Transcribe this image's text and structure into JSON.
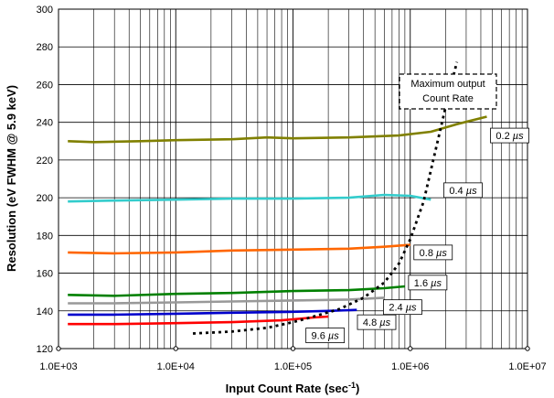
{
  "chart_data": {
    "type": "line",
    "xscale": "log",
    "xlim": [
      1000,
      10000000
    ],
    "ylim": [
      120,
      300
    ],
    "grid": true,
    "xlabel": "Input Count Rate (sec",
    "xlabel_sup": "-1",
    "xlabel_end": ")",
    "ylabel": "Resolution (eV FWHM @ 5.9 keV)",
    "x_tick_labels": [
      "1.0E+03",
      "1.0E+04",
      "1.0E+05",
      "1.0E+06",
      "1.0E+07"
    ],
    "x_tick_values": [
      1000,
      10000,
      100000,
      1000000,
      10000000
    ],
    "y_tick_values": [
      120,
      140,
      160,
      180,
      200,
      220,
      240,
      260,
      280,
      300
    ],
    "y_tick_labels": [
      "120",
      "140",
      "160",
      "180",
      "200",
      "220",
      "240",
      "260",
      "280",
      "300"
    ],
    "series": [
      {
        "name": "0.2 µs",
        "label_prefix": "0.2 ",
        "label_unit": "µs",
        "color": "#808000",
        "x": [
          1200,
          2000,
          5000,
          10000,
          30000,
          60000,
          100000,
          300000,
          800000,
          1500000,
          2500000,
          4500000
        ],
        "y": [
          230,
          229.5,
          230,
          230.5,
          231,
          232,
          231.5,
          232,
          233,
          235,
          239,
          243
        ]
      },
      {
        "name": "0.4 µs",
        "label_prefix": "0.4 ",
        "label_unit": "µs",
        "color": "#33cccc",
        "x": [
          1200,
          3000,
          10000,
          30000,
          100000,
          300000,
          600000,
          1000000,
          1500000
        ],
        "y": [
          198,
          198.5,
          199,
          199.5,
          199.5,
          200,
          201.5,
          201,
          199
        ]
      },
      {
        "name": "0.8 µs",
        "label_prefix": "0.8 ",
        "label_unit": "µs",
        "color": "#ff6600",
        "x": [
          1200,
          3000,
          10000,
          30000,
          100000,
          300000,
          600000,
          1000000
        ],
        "y": [
          171,
          170.5,
          171,
          172,
          172.5,
          173,
          174,
          175
        ]
      },
      {
        "name": "1.6 µs",
        "label_prefix": "1.6 ",
        "label_unit": "µs",
        "color": "#008000",
        "x": [
          1200,
          3000,
          10000,
          30000,
          100000,
          300000,
          600000,
          900000
        ],
        "y": [
          148.5,
          148,
          149,
          149.5,
          150.5,
          151,
          152,
          153
        ]
      },
      {
        "name": "2.4 µs",
        "label_prefix": "2.4 ",
        "label_unit": "µs",
        "color": "#999999",
        "x": [
          1200,
          3000,
          10000,
          30000,
          100000,
          300000,
          600000
        ],
        "y": [
          144,
          144,
          144.5,
          145,
          145.5,
          146,
          147
        ]
      },
      {
        "name": "4.8 µs",
        "label_prefix": "4.8 ",
        "label_unit": "µs",
        "color": "#0000cc",
        "x": [
          1200,
          3000,
          10000,
          30000,
          100000,
          200000,
          350000
        ],
        "y": [
          138,
          138,
          138.5,
          139,
          139.5,
          140,
          140.5
        ]
      },
      {
        "name": "9.6 µs",
        "label_prefix": "9.6 ",
        "label_unit": "µs",
        "color": "#ff0000",
        "x": [
          1200,
          3000,
          10000,
          30000,
          80000,
          150000,
          200000
        ],
        "y": [
          133,
          133,
          133.5,
          134,
          135,
          136.5,
          137
        ]
      }
    ],
    "max_output_curve": {
      "name": "Maximum output Count Rate",
      "x": [
        14000,
        30000,
        60000,
        100000,
        150000,
        250000,
        400000,
        600000,
        800000,
        1000000,
        1300000,
        1600000,
        2000000,
        2500000
      ],
      "y": [
        128,
        129,
        131,
        134,
        137,
        141,
        147,
        155,
        165,
        178,
        198,
        222,
        248,
        272
      ]
    },
    "annotation_lines": [
      "Maximum output",
      "Count Rate"
    ]
  }
}
